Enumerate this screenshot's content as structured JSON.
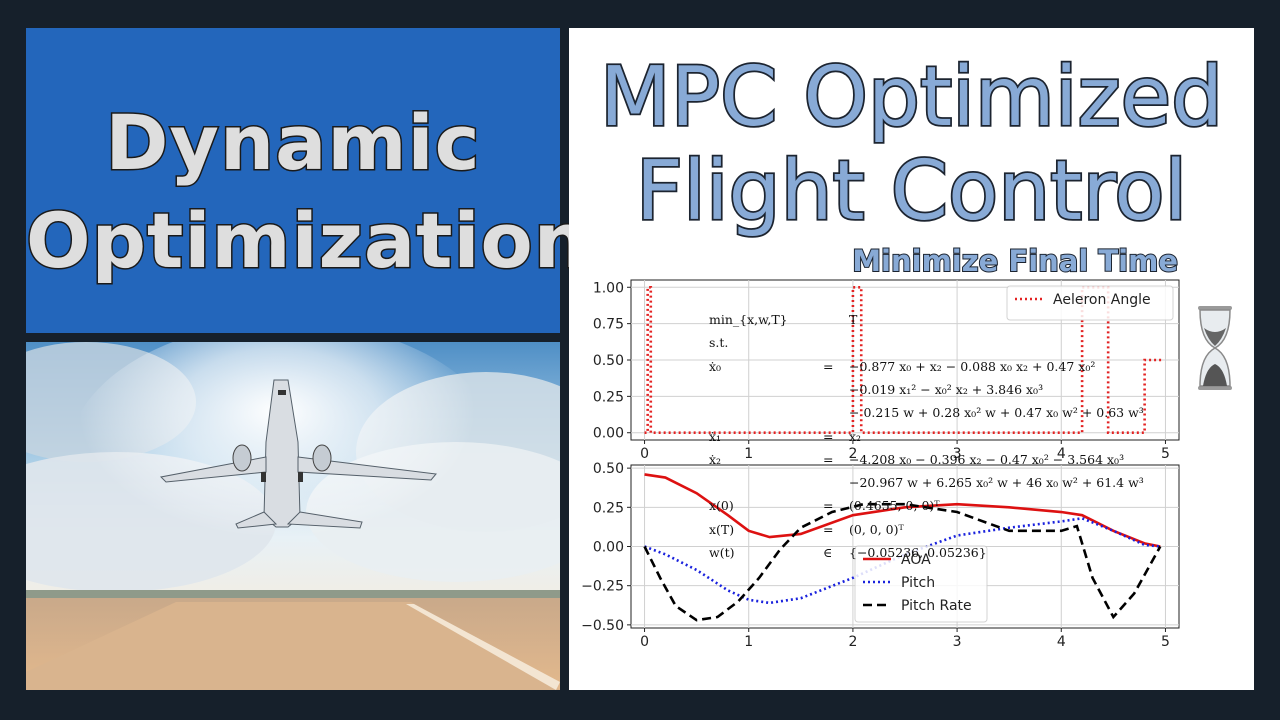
{
  "left_title": {
    "line1": "Dynamic",
    "line2": "Optimization"
  },
  "right_title": {
    "line1": "MPC Optimized",
    "line2": "Flight Control",
    "subtitle": "Minimize Final Time"
  },
  "colors": {
    "panel_blue": "#2366bb",
    "title_fill": "#88aad6",
    "background": "#16202b"
  },
  "icons": {
    "hourglass": "hourglass-icon"
  },
  "photo": {
    "description_icon": "airplane-takeoff-photo"
  },
  "equations": [
    {
      "lhs": "min_{x,w,T}",
      "rel": "",
      "rhs": "T"
    },
    {
      "lhs": "s.t.",
      "rel": "",
      "rhs": ""
    },
    {
      "lhs": "ẋ₀",
      "rel": "=",
      "rhs": "−0.877 x₀ + x₂ − 0.088 x₀ x₂ + 0.47 x₀²"
    },
    {
      "lhs": "",
      "rel": "",
      "rhs": "−0.019 x₁² − x₀² x₂ + 3.846 x₀³"
    },
    {
      "lhs": "",
      "rel": "",
      "rhs": "− 0.215 w + 0.28 x₀² w + 0.47 x₀ w² + 0.63 w³"
    },
    {
      "lhs": "ẋ₁",
      "rel": "=",
      "rhs": "x₂"
    },
    {
      "lhs": "ẋ₂",
      "rel": "=",
      "rhs": "−4.208 x₀ − 0.396 x₂ − 0.47 x₀² − 3.564 x₀³"
    },
    {
      "lhs": "",
      "rel": "",
      "rhs": "−20.967 w + 6.265 x₀² w + 46 x₀ w² + 61.4 w³"
    },
    {
      "lhs": "x(0)",
      "rel": "=",
      "rhs": "(0.4655, 0, 0)ᵀ"
    },
    {
      "lhs": "x(T)",
      "rel": "=",
      "rhs": "(0, 0, 0)ᵀ"
    },
    {
      "lhs": "w(t)",
      "rel": "∈",
      "rhs": "{−0.05236, 0.05236}"
    }
  ],
  "chart_data": [
    {
      "type": "line",
      "xlim": [
        0,
        5
      ],
      "ylim": [
        0,
        1.05
      ],
      "x_ticks": [
        "0",
        "1",
        "2",
        "3",
        "4",
        "5"
      ],
      "y_ticks": [
        "0.00",
        "0.25",
        "0.50",
        "0.75",
        "1.00"
      ],
      "grid": true,
      "legend_position": "top-right",
      "series": [
        {
          "name": "Aeleron Angle",
          "color": "#e32222",
          "style": "dotted",
          "x": [
            0,
            0.03,
            0.03,
            0.06,
            0.06,
            2.0,
            2.0,
            2.08,
            2.08,
            4.2,
            4.2,
            4.45,
            4.45,
            4.8,
            4.8,
            4.98,
            4.98
          ],
          "y": [
            0,
            0,
            1.0,
            1.0,
            0,
            0,
            1.0,
            1.0,
            0,
            0,
            1.0,
            1.0,
            0,
            0,
            0.5,
            0.5,
            0.5
          ]
        }
      ]
    },
    {
      "type": "line",
      "xlim": [
        0,
        5
      ],
      "ylim": [
        -0.5,
        0.5
      ],
      "x_ticks": [
        "0",
        "1",
        "2",
        "3",
        "4",
        "5"
      ],
      "y_ticks": [
        "−0.50",
        "−0.25",
        "0.00",
        "0.25",
        "0.50"
      ],
      "grid": true,
      "legend_position": "bottom-center",
      "series": [
        {
          "name": "AOA",
          "color": "#dd1111",
          "style": "solid",
          "x": [
            0,
            0.2,
            0.5,
            0.8,
            1.0,
            1.2,
            1.5,
            2.0,
            2.5,
            3.0,
            3.5,
            4.0,
            4.2,
            4.5,
            4.8,
            4.95
          ],
          "y": [
            0.46,
            0.44,
            0.34,
            0.2,
            0.1,
            0.06,
            0.08,
            0.2,
            0.25,
            0.27,
            0.25,
            0.22,
            0.2,
            0.1,
            0.02,
            0.0
          ]
        },
        {
          "name": "Pitch",
          "color": "#1a22dd",
          "style": "dotted",
          "x": [
            0,
            0.2,
            0.5,
            0.8,
            1.0,
            1.2,
            1.5,
            2.0,
            2.5,
            3.0,
            3.5,
            4.0,
            4.2,
            4.5,
            4.8,
            4.95
          ],
          "y": [
            0.0,
            -0.05,
            -0.15,
            -0.28,
            -0.34,
            -0.36,
            -0.33,
            -0.2,
            -0.05,
            0.07,
            0.12,
            0.16,
            0.18,
            0.1,
            0.01,
            0.0
          ]
        },
        {
          "name": "Pitch Rate",
          "color": "#000000",
          "style": "dashed",
          "x": [
            0,
            0.15,
            0.3,
            0.5,
            0.7,
            0.9,
            1.1,
            1.3,
            1.5,
            1.8,
            2.1,
            2.5,
            3.0,
            3.5,
            4.0,
            4.15,
            4.3,
            4.5,
            4.7,
            4.95
          ],
          "y": [
            0.0,
            -0.2,
            -0.38,
            -0.47,
            -0.45,
            -0.35,
            -0.2,
            -0.02,
            0.12,
            0.22,
            0.27,
            0.27,
            0.22,
            0.1,
            0.1,
            0.13,
            -0.2,
            -0.45,
            -0.3,
            0.0
          ]
        }
      ]
    }
  ]
}
